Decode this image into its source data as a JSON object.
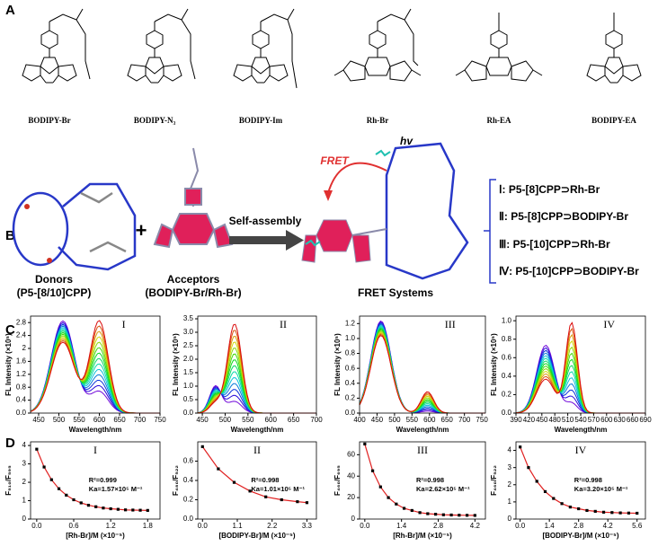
{
  "panel_labels": [
    "A",
    "B",
    "C",
    "D"
  ],
  "molecules": [
    "BODIPY-Br",
    "BODIPY-N₃",
    "BODIPY-Im",
    "Rh-Br",
    "Rh-EA",
    "BODIPY-EA"
  ],
  "diagram": {
    "donors_label": "Donors",
    "donors_sub": "(P5-[8/10]CPP)",
    "plus": "+",
    "acceptors_label": "Acceptors",
    "acceptors_sub": "(BODIPY-Br/Rh-Br)",
    "arrow_label": "Self-assembly",
    "fret": "FRET",
    "hv": "hv",
    "product_label": "FRET Systems",
    "systems": [
      "Ⅰ: P5-[8]CPP⊃Rh-Br",
      "Ⅱ: P5-[8]CPP⊃BODIPY-Br",
      "Ⅲ: P5-[10]CPP⊃Rh-Br",
      "Ⅳ: P5-[10]CPP⊃BODIPY-Br"
    ]
  },
  "chart_data": [
    {
      "type": "spectra",
      "panel": "C",
      "numeral": "I",
      "xlabel": "Wavelength/nm",
      "ylabel": "FL Intensity (×10⁵)",
      "xlim": [
        430,
        750
      ],
      "xticks": [
        450,
        500,
        550,
        600,
        650,
        700,
        750
      ],
      "ylim": [
        0,
        3.0
      ],
      "yticks": [
        {
          "value": 0,
          "label": "0.0"
        },
        0.4,
        0.8,
        1.2,
        1.6,
        2.0,
        2.4,
        2.8
      ]
    },
    {
      "type": "spectra",
      "panel": "C",
      "numeral": "II",
      "xlabel": "Wavelength/nm",
      "ylabel": "FL Intensity (×10⁵)",
      "xlim": [
        440,
        700
      ],
      "xticks": [
        450,
        500,
        550,
        600,
        650,
        700
      ],
      "ylim": [
        0,
        3.6
      ],
      "yticks": [
        {
          "value": 0,
          "label": "0.0"
        },
        0.5,
        {
          "value": 1,
          "label": "1.0"
        },
        1.5,
        {
          "value": 2,
          "label": "2.0"
        },
        2.5,
        {
          "value": 3,
          "label": "3.0"
        },
        3.5
      ]
    },
    {
      "type": "spectra",
      "panel": "C",
      "numeral": "III",
      "xlabel": "Wavelength/nm",
      "ylabel": "FL Intensity (×10⁵)",
      "xlim": [
        400,
        760
      ],
      "xticks": [
        400,
        450,
        500,
        550,
        600,
        650,
        700,
        750
      ],
      "ylim": [
        0,
        1.3
      ],
      "yticks": [
        {
          "value": 0,
          "label": "0.0"
        },
        0.2,
        0.4,
        0.6,
        0.8,
        {
          "value": 1,
          "label": "1.0"
        },
        1.2
      ]
    },
    {
      "type": "spectra",
      "panel": "C",
      "numeral": "IV",
      "xlabel": "Wavelength/nm",
      "ylabel": "FL Intensity (×10⁵)",
      "xlim": [
        390,
        690
      ],
      "xticks": [
        390,
        420,
        450,
        480,
        510,
        540,
        570,
        600,
        630,
        660,
        690
      ],
      "ylim": [
        0,
        1.05
      ],
      "yticks": [
        {
          "value": 0,
          "label": "0.0"
        },
        0.2,
        0.4,
        0.6,
        0.8,
        {
          "value": 1,
          "label": "1.0"
        }
      ]
    },
    {
      "type": "scatter",
      "panel": "D",
      "numeral": "I",
      "xlabel": "[Rh-Br]/M (×10⁻⁵)",
      "ylabel": "F₅₁₀/F₅₉₅",
      "annotations": [
        "R²=0.999",
        "Ka=1.57×10⁵ M⁻¹"
      ],
      "xlim": [
        -0.1,
        2.0
      ],
      "xticks": [
        {
          "value": 0,
          "label": "0.0"
        },
        0.6,
        1.2,
        1.8
      ],
      "ylim": [
        0,
        4.2
      ],
      "yticks": [
        0,
        1,
        2,
        3,
        4
      ],
      "x": [
        0,
        0.12,
        0.24,
        0.36,
        0.48,
        0.6,
        0.72,
        0.84,
        0.96,
        1.08,
        1.2,
        1.32,
        1.44,
        1.56,
        1.68,
        1.8
      ],
      "values": [
        3.8,
        2.83,
        2.14,
        1.65,
        1.3,
        1.05,
        0.88,
        0.75,
        0.67,
        0.6,
        0.56,
        0.53,
        0.5,
        0.49,
        0.48,
        0.47
      ]
    },
    {
      "type": "scatter",
      "panel": "D",
      "numeral": "II",
      "xlabel": "[BODIPY-Br]/M (×10⁻⁵)",
      "ylabel": "F₄₈₀/F₅₂₂",
      "annotations": [
        "R²=0.998",
        "Ka=1.01×10⁵ M⁻¹"
      ],
      "xlim": [
        -0.15,
        3.6
      ],
      "xticks": [
        {
          "value": 0,
          "label": "0.0"
        },
        1.1,
        2.2,
        3.3
      ],
      "ylim": [
        0,
        0.8
      ],
      "yticks": [
        {
          "value": 0,
          "label": "0.0"
        },
        0.2,
        0.4,
        0.6
      ],
      "x": [
        0,
        0.5,
        1.0,
        1.5,
        2.0,
        2.5,
        3.0,
        3.3
      ],
      "values": [
        0.75,
        0.52,
        0.38,
        0.29,
        0.23,
        0.2,
        0.18,
        0.17
      ]
    },
    {
      "type": "scatter",
      "panel": "D",
      "numeral": "III",
      "xlabel": "[Rh-Br]/M (×10⁻⁵)",
      "ylabel": "F₄₆₀/F₆₉₅",
      "annotations": [
        "R²=0.998",
        "Ka=2.62×10⁵ M⁻¹"
      ],
      "xlim": [
        -0.2,
        4.6
      ],
      "xticks": [
        {
          "value": 0,
          "label": "0.0"
        },
        1.4,
        2.8,
        4.2
      ],
      "ylim": [
        0,
        72
      ],
      "yticks": [
        0,
        20,
        40,
        60
      ],
      "x": [
        0,
        0.3,
        0.6,
        0.9,
        1.2,
        1.5,
        1.8,
        2.1,
        2.4,
        2.7,
        3.0,
        3.3,
        3.6,
        3.9,
        4.2
      ],
      "values": [
        70,
        45,
        30,
        20,
        14,
        10,
        8,
        6,
        5,
        4.5,
        4,
        3.8,
        3.6,
        3.5,
        3.4
      ]
    },
    {
      "type": "scatter",
      "panel": "D",
      "numeral": "IV",
      "xlabel": "[BODIPY-Br]/M (×10⁻⁵)",
      "ylabel": "F₄₆₀/F₅₂₂",
      "annotations": [
        "R²=0.998",
        "Ka=3.20×10⁵ M⁻¹"
      ],
      "xlim": [
        -0.2,
        6.0
      ],
      "xticks": [
        {
          "value": 0,
          "label": "0.0"
        },
        1.4,
        2.8,
        4.2,
        5.6
      ],
      "ylim": [
        0,
        4.5
      ],
      "yticks": [
        0,
        1,
        2,
        3,
        4
      ],
      "x": [
        0,
        0.4,
        0.8,
        1.2,
        1.6,
        2.0,
        2.4,
        2.8,
        3.2,
        3.6,
        4.0,
        4.4,
        4.8,
        5.2,
        5.6
      ],
      "values": [
        4.2,
        3.0,
        2.2,
        1.6,
        1.2,
        0.9,
        0.7,
        0.6,
        0.5,
        0.45,
        0.4,
        0.38,
        0.36,
        0.35,
        0.34
      ]
    }
  ]
}
